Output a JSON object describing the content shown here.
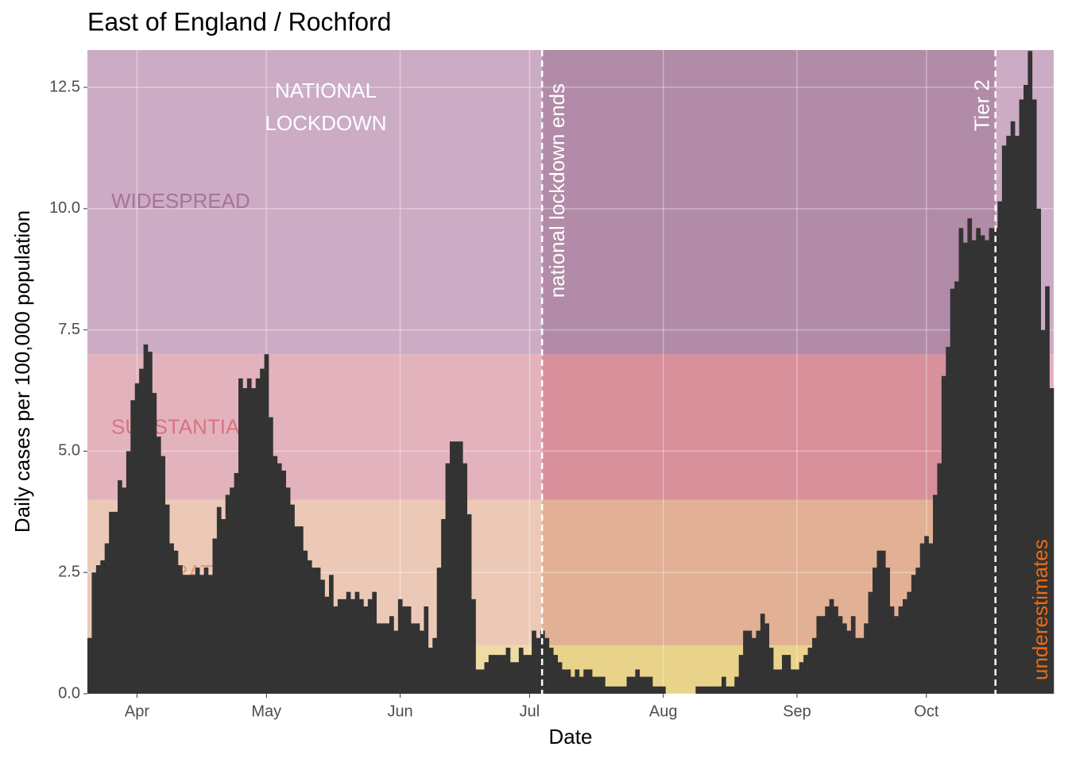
{
  "chart_data": {
    "type": "bar",
    "title": "East of England / Rochford",
    "x_label": "Date",
    "y_label": "Daily cases per 100,000 population",
    "color": "#333333",
    "grid": true,
    "xlim": [
      -0.5,
      223.5
    ],
    "ylim": [
      0,
      13.27
    ],
    "xticks": [
      {
        "value": 11,
        "label": "Apr"
      },
      {
        "value": 41,
        "label": "May"
      },
      {
        "value": 72,
        "label": "Jun"
      },
      {
        "value": 102,
        "label": "Jul"
      },
      {
        "value": 133,
        "label": "Aug"
      },
      {
        "value": 164,
        "label": "Sep"
      },
      {
        "value": 194,
        "label": "Oct"
      }
    ],
    "yticks": [
      {
        "value": 0,
        "label": "0.0"
      },
      2.5,
      {
        "value": 5,
        "label": "5.0"
      },
      7.5,
      {
        "value": 10,
        "label": "10.0"
      },
      12.5
    ],
    "bands": [
      {
        "from": 0,
        "color": "#f0dba4",
        "color_dark": "#e9d28a"
      },
      {
        "from": 1,
        "label": "MODERATE",
        "color": "#ecc9b7",
        "color_dark": "#e2b094",
        "label_color": "#e39a72"
      },
      {
        "from": 4,
        "label": "SUBSTANTIAL",
        "color": "#e3b3bd",
        "color_dark": "#d8909b",
        "label_color": "#d9727f"
      },
      {
        "from": 7,
        "label": "WIDESPREAD",
        "color": "#ccacc5",
        "color_dark": "#b18ba7",
        "label_color": "#a8729c"
      }
    ],
    "events": [
      {
        "x": 104.9,
        "label": "national lockdown ends"
      },
      {
        "x": 210,
        "label": "Tier 2"
      }
    ],
    "period_label": [
      "NATIONAL",
      "LOCKDOWN"
    ],
    "note": {
      "text": "underestimates",
      "color": "#ec6b12"
    },
    "x": [
      0,
      1,
      2,
      3,
      4,
      5,
      6,
      7,
      8,
      9,
      10,
      11,
      12,
      13,
      14,
      15,
      16,
      17,
      18,
      19,
      20,
      21,
      22,
      23,
      24,
      25,
      26,
      27,
      28,
      29,
      30,
      31,
      32,
      33,
      34,
      35,
      36,
      37,
      38,
      39,
      40,
      41,
      42,
      43,
      44,
      45,
      46,
      47,
      48,
      49,
      50,
      51,
      52,
      53,
      54,
      55,
      56,
      57,
      58,
      59,
      60,
      61,
      62,
      63,
      64,
      65,
      66,
      67,
      68,
      69,
      70,
      71,
      72,
      73,
      74,
      75,
      76,
      77,
      78,
      79,
      80,
      81,
      82,
      83,
      84,
      85,
      86,
      87,
      88,
      89,
      90,
      91,
      92,
      93,
      94,
      95,
      96,
      97,
      98,
      99,
      100,
      101,
      102,
      103,
      104,
      105,
      106,
      107,
      108,
      109,
      110,
      111,
      112,
      113,
      114,
      115,
      116,
      117,
      118,
      119,
      120,
      121,
      122,
      123,
      124,
      125,
      126,
      127,
      128,
      129,
      130,
      131,
      132,
      133,
      134,
      135,
      136,
      137,
      138,
      139,
      140,
      141,
      142,
      143,
      144,
      145,
      146,
      147,
      148,
      149,
      150,
      151,
      152,
      153,
      154,
      155,
      156,
      157,
      158,
      159,
      160,
      161,
      162,
      163,
      164,
      165,
      166,
      167,
      168,
      169,
      170,
      171,
      172,
      173,
      174,
      175,
      176,
      177,
      178,
      179,
      180,
      181,
      182,
      183,
      184,
      185,
      186,
      187,
      188,
      189,
      190,
      191,
      192,
      193,
      194,
      195,
      196,
      197,
      198,
      199,
      200,
      201,
      202,
      203,
      204,
      205,
      206,
      207,
      208,
      209,
      210,
      211,
      212,
      213,
      214,
      215,
      216,
      217,
      218,
      219,
      220,
      221,
      222,
      223
    ],
    "values": [
      1.15,
      2.5,
      2.65,
      2.75,
      3.1,
      3.75,
      3.75,
      4.4,
      4.25,
      5.0,
      6.05,
      6.4,
      6.7,
      7.2,
      7.05,
      6.2,
      5.3,
      4.9,
      3.9,
      3.1,
      2.95,
      2.65,
      2.45,
      2.45,
      2.45,
      2.6,
      2.45,
      2.6,
      2.45,
      3.2,
      3.85,
      3.6,
      4.1,
      4.25,
      4.55,
      6.5,
      6.3,
      6.5,
      6.3,
      6.5,
      6.7,
      7.0,
      5.7,
      4.9,
      4.75,
      4.6,
      4.25,
      3.9,
      3.45,
      3.45,
      2.95,
      2.75,
      2.6,
      2.6,
      2.35,
      2.0,
      2.45,
      1.8,
      1.95,
      1.95,
      2.1,
      1.95,
      2.1,
      1.95,
      1.8,
      1.95,
      2.1,
      1.45,
      1.45,
      1.45,
      1.6,
      1.3,
      1.95,
      1.8,
      1.8,
      1.45,
      1.45,
      1.3,
      1.8,
      0.95,
      1.15,
      2.6,
      3.6,
      4.75,
      5.2,
      5.2,
      5.2,
      4.75,
      3.7,
      1.95,
      0.5,
      0.5,
      0.65,
      0.8,
      0.8,
      0.8,
      0.8,
      0.95,
      0.65,
      0.65,
      0.95,
      0.8,
      0.8,
      1.3,
      1.15,
      1.3,
      1.15,
      0.95,
      0.8,
      0.65,
      0.5,
      0.5,
      0.35,
      0.5,
      0.35,
      0.5,
      0.5,
      0.35,
      0.35,
      0.35,
      0.15,
      0.15,
      0.15,
      0.15,
      0.15,
      0.35,
      0.35,
      0.5,
      0.35,
      0.35,
      0.35,
      0.15,
      0.15,
      0.15,
      0,
      0,
      0,
      0,
      0,
      0,
      0,
      0.15,
      0.15,
      0.15,
      0.15,
      0.15,
      0.15,
      0.35,
      0.15,
      0.15,
      0.35,
      0.8,
      1.3,
      1.3,
      1.15,
      1.3,
      1.65,
      1.45,
      0.95,
      0.5,
      0.5,
      0.8,
      0.8,
      0.5,
      0.5,
      0.65,
      0.8,
      0.95,
      1.15,
      1.6,
      1.6,
      1.8,
      1.95,
      1.8,
      1.6,
      1.45,
      1.3,
      1.6,
      1.15,
      1.15,
      1.45,
      2.1,
      2.6,
      2.95,
      2.95,
      2.6,
      1.8,
      1.6,
      1.8,
      1.95,
      2.1,
      2.45,
      2.6,
      3.1,
      3.25,
      3.1,
      4.1,
      4.75,
      6.55,
      7.15,
      8.35,
      8.5,
      9.6,
      9.3,
      9.8,
      9.35,
      9.6,
      9.45,
      9.35,
      9.6,
      9.6,
      10.15,
      11.3,
      11.5,
      11.8,
      11.5,
      12.25,
      12.55,
      13.25,
      12.25,
      10.0,
      7.5,
      8.4,
      6.3
    ]
  }
}
